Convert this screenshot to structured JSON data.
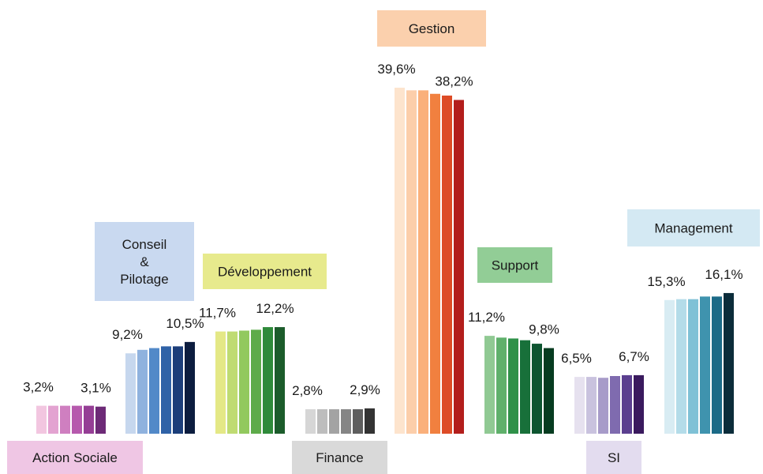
{
  "chart_data": {
    "type": "bar",
    "title": "",
    "xlabel": "",
    "ylabel": "",
    "ylim": [
      0,
      40
    ],
    "grid": false,
    "groups": [
      {
        "name": "Action Sociale",
        "label_lines": [
          "Action Sociale"
        ],
        "label_color": "#efc6e4",
        "bar_colors": [
          "#f2c6e0",
          "#e3a3d1",
          "#cf7fc0",
          "#b659ad",
          "#953e95",
          "#6d2a77"
        ],
        "values": [
          3.2,
          3.2,
          3.2,
          3.2,
          3.2,
          3.1
        ],
        "first_label": "3,2%",
        "last_label": "3,1%"
      },
      {
        "name": "Conseil & Pilotage",
        "label_lines": [
          "Conseil",
          "&",
          "Pilotage"
        ],
        "label_color": "#c9d9f0",
        "bar_colors": [
          "#c6d7ee",
          "#8fb2de",
          "#5289c8",
          "#2f62a7",
          "#1c3e7a",
          "#0c1d3f"
        ],
        "values": [
          9.2,
          9.6,
          9.8,
          10.0,
          10.0,
          10.5
        ],
        "first_label": "9,2%",
        "last_label": "10,5%"
      },
      {
        "name": "Développement",
        "label_lines": [
          "Développement"
        ],
        "label_color": "#e7ea8d",
        "bar_colors": [
          "#e4e886",
          "#bfdb72",
          "#92c95e",
          "#5eab4a",
          "#2f8a3a",
          "#1c5c2b"
        ],
        "values": [
          11.7,
          11.7,
          11.8,
          11.9,
          12.2,
          12.2
        ],
        "first_label": "11,7%",
        "last_label": "12,2%"
      },
      {
        "name": "Finance",
        "label_lines": [
          "Finance"
        ],
        "label_color": "#d9d9d9",
        "bar_colors": [
          "#d6d6d6",
          "#bdbdbd",
          "#a3a3a3",
          "#858585",
          "#5e5e5e",
          "#333333"
        ],
        "values": [
          2.8,
          2.8,
          2.8,
          2.8,
          2.8,
          2.9
        ],
        "first_label": "2,8%",
        "last_label": "2,9%"
      },
      {
        "name": "Gestion",
        "label_lines": [
          "Gestion"
        ],
        "label_color": "#fbd0ad",
        "bar_colors": [
          "#fde4cd",
          "#fcceaa",
          "#fab07b",
          "#f1803f",
          "#dd4b26",
          "#b31e1c"
        ],
        "values": [
          39.6,
          39.3,
          39.3,
          38.9,
          38.7,
          38.2
        ],
        "first_label": "39,6%",
        "last_label": "38,2%"
      },
      {
        "name": "Support",
        "label_lines": [
          "Support"
        ],
        "label_color": "#92cd96",
        "bar_colors": [
          "#90c993",
          "#5fb06b",
          "#2f9149",
          "#18703a",
          "#0d5530",
          "#063c20"
        ],
        "values": [
          11.2,
          11.0,
          10.9,
          10.7,
          10.3,
          9.8
        ],
        "first_label": "11,2%",
        "last_label": "9,8%"
      },
      {
        "name": "SI",
        "label_lines": [
          "SI"
        ],
        "label_color": "#e3dcef",
        "bar_colors": [
          "#e6e1ef",
          "#c9c2de",
          "#a79bc9",
          "#7f6baf",
          "#5b3f8f",
          "#3a1a5e"
        ],
        "values": [
          6.5,
          6.5,
          6.4,
          6.6,
          6.7,
          6.7
        ],
        "first_label": "6,5%",
        "last_label": "6,7%"
      },
      {
        "name": "Management",
        "label_lines": [
          "Management"
        ],
        "label_color": "#d4e9f3",
        "bar_colors": [
          "#d8ecf3",
          "#b4dce9",
          "#7fc1d6",
          "#3f93ae",
          "#1b6a87",
          "#0b2c3a"
        ],
        "values": [
          15.3,
          15.4,
          15.4,
          15.7,
          15.7,
          16.1
        ],
        "first_label": "15,3%",
        "last_label": "16,1%"
      }
    ]
  }
}
